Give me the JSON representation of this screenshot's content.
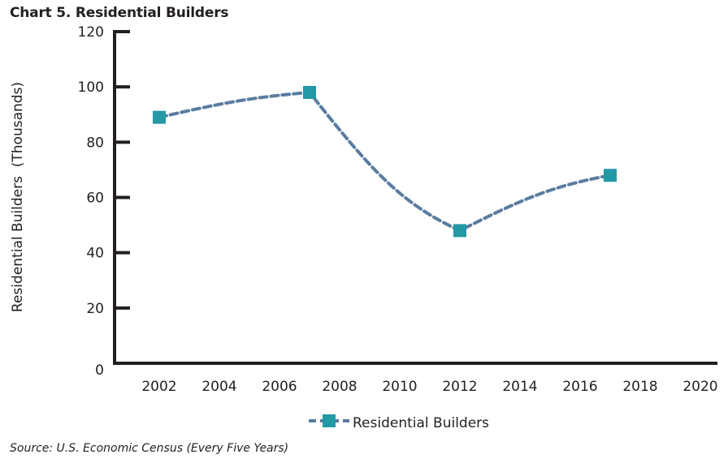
{
  "header": {
    "title": "Chart 5. Residential Builders"
  },
  "footer": {
    "source": "Source: U.S. Economic Census (Every Five Years)"
  },
  "colors": {
    "line": "#5a7ca0",
    "marker": "#2399a6",
    "axis": "#231f20"
  },
  "chart_data": {
    "type": "line",
    "title": "Chart 5. Residential Builders",
    "xlabel": "",
    "ylabel": "Residential Builders  (Thousands)",
    "x": [
      2002,
      2007,
      2012,
      2017
    ],
    "series": [
      {
        "name": "Residential Builders",
        "values": [
          89,
          98,
          48,
          68
        ],
        "style": "dashed line with square markers"
      }
    ],
    "xlim": [
      2000.5,
      2020.5
    ],
    "ylim": [
      0,
      120
    ],
    "xticks": [
      2002,
      2004,
      2006,
      2008,
      2010,
      2012,
      2014,
      2016,
      2018,
      2020
    ],
    "xtick_labels": [
      "2002",
      "2004",
      "2006",
      "2008",
      "2010",
      "2012",
      "2014",
      "2016",
      "2018",
      "2020"
    ],
    "yticks": [
      0,
      20,
      40,
      60,
      80,
      100,
      120
    ],
    "ytick_labels": [
      "0",
      "20",
      "40",
      "60",
      "80",
      "100",
      "120"
    ],
    "grid": false,
    "legend": {
      "entries": [
        "Residential Builders"
      ],
      "placement": "bottom-center"
    }
  }
}
